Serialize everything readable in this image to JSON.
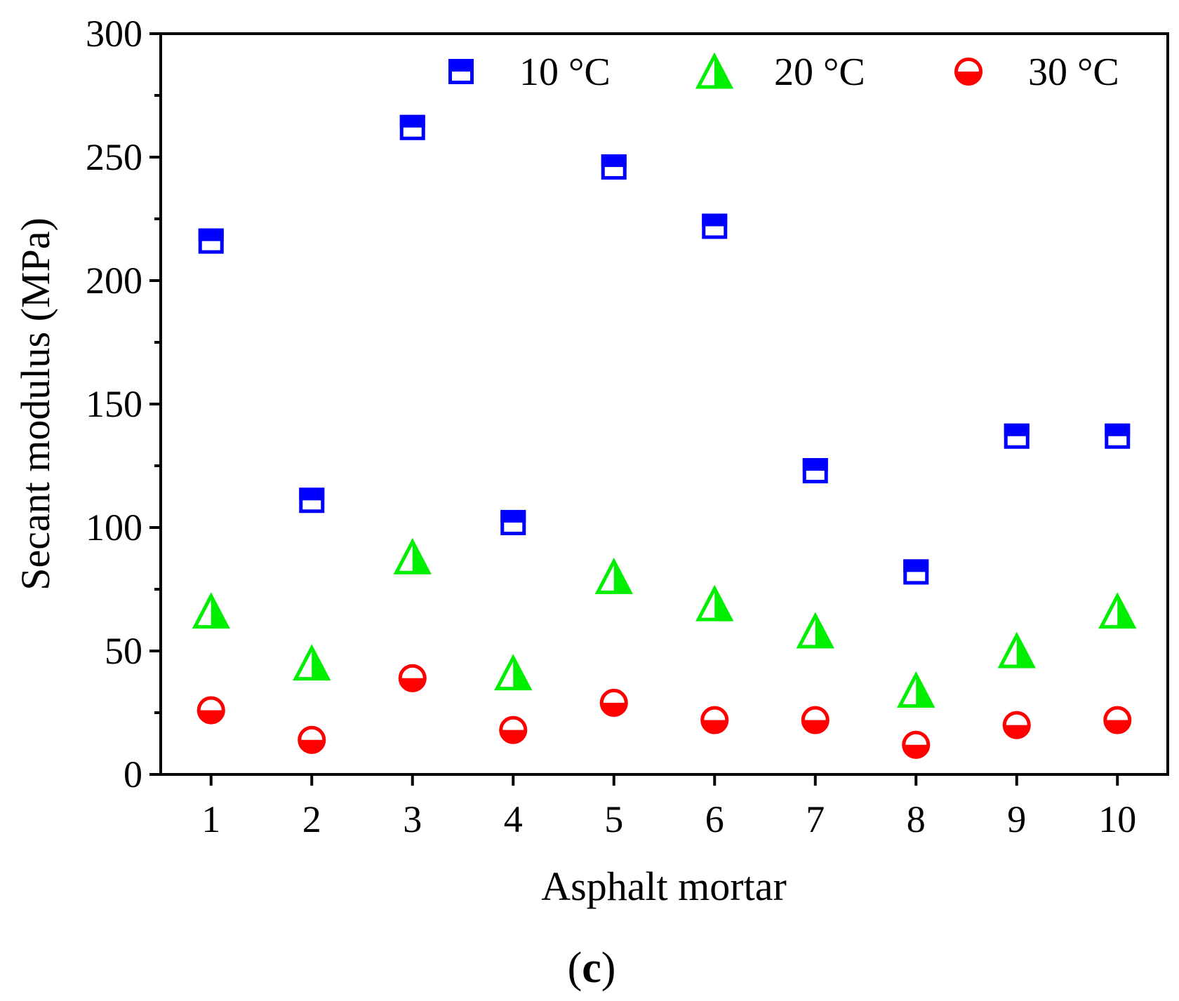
{
  "chart_data": {
    "type": "scatter",
    "title": "",
    "xlabel": "Asphalt mortar",
    "ylabel": "Secant modulus (MPa)",
    "panel_label": {
      "open": "(",
      "letter": "c",
      "close": ")"
    },
    "x": [
      1,
      2,
      3,
      4,
      5,
      6,
      7,
      8,
      9,
      10
    ],
    "xticks": [
      "1",
      "2",
      "3",
      "4",
      "5",
      "6",
      "7",
      "8",
      "9",
      "10"
    ],
    "xlim": [
      0.5,
      10.5
    ],
    "ylim": [
      0,
      300
    ],
    "yticks": [
      "0",
      "50",
      "100",
      "150",
      "200",
      "250",
      "300"
    ],
    "grid": false,
    "legend_position": "top-right",
    "series": [
      {
        "name": "10 °C",
        "marker": "square-half-filled",
        "color": "#0000ff",
        "values": [
          216,
          111,
          262,
          102,
          246,
          222,
          123,
          82,
          137,
          137
        ]
      },
      {
        "name": "20 °C",
        "marker": "triangle-half-filled",
        "color": "#00ee00",
        "values": [
          66,
          45,
          88,
          41,
          80,
          69,
          58,
          34,
          50,
          66
        ]
      },
      {
        "name": "30 °C",
        "marker": "circle-half-filled",
        "color": "#ff0000",
        "values": [
          26,
          14,
          39,
          18,
          29,
          22,
          22,
          12,
          20,
          22
        ]
      }
    ]
  }
}
